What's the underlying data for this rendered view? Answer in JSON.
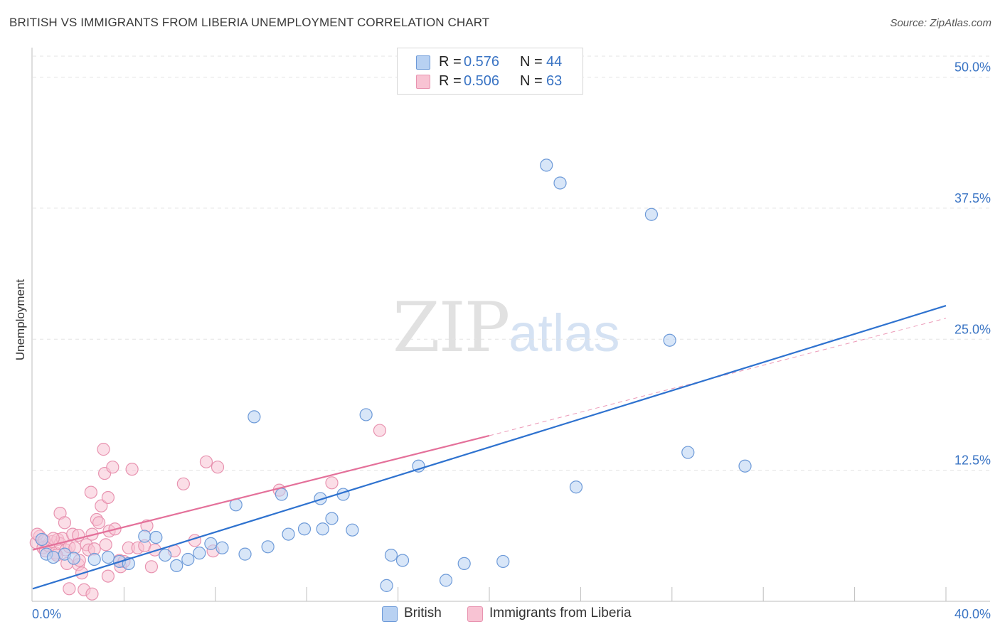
{
  "title": "BRITISH VS IMMIGRANTS FROM LIBERIA UNEMPLOYMENT CORRELATION CHART",
  "source": "Source: ZipAtlas.com",
  "watermark": {
    "zip": "ZIP",
    "atlas": "atlas"
  },
  "legend": {
    "r_label": "R =",
    "n_label": "N =",
    "rows": [
      {
        "name": "British",
        "r": "0.576",
        "n": "44"
      },
      {
        "name": "Immigrants from Liberia",
        "r": "0.506",
        "n": "63"
      }
    ]
  },
  "bottom_legend": {
    "british": "British",
    "liberia": "Immigrants from Liberia"
  },
  "colors": {
    "british_fill": "#b8d1f2",
    "british_stroke": "#6d9ad8",
    "british_line": "#2e72cf",
    "liberia_fill": "#f8c3d3",
    "liberia_stroke": "#e893b0",
    "liberia_line": "#e4709a",
    "value_text": "#3a74c4",
    "grid": "#e3e3e3"
  },
  "chart_data": {
    "type": "scatter",
    "title": "BRITISH VS IMMIGRANTS FROM LIBERIA UNEMPLOYMENT CORRELATION CHART",
    "xlabel": "",
    "ylabel": "Unemployment",
    "xlim": [
      0,
      40
    ],
    "ylim": [
      0,
      52
    ],
    "x_tick_labels": [
      {
        "value": 0,
        "label": "0.0%"
      },
      {
        "value": 40,
        "label": "40.0%"
      }
    ],
    "y_ticks": [
      {
        "value": 12.5,
        "label": "12.5%"
      },
      {
        "value": 25.0,
        "label": "25.0%"
      },
      {
        "value": 37.5,
        "label": "37.5%"
      },
      {
        "value": 50.0,
        "label": "50.0%"
      }
    ],
    "x_minor_ticks": [
      4,
      8,
      12,
      16,
      20,
      24,
      28,
      32,
      36,
      40
    ],
    "series": [
      {
        "name": "British",
        "r": 0.576,
        "n": 44,
        "trend": {
          "x": [
            0,
            40
          ],
          "y": [
            1.2,
            28.2
          ],
          "extends_dashed": false
        },
        "points": [
          [
            0.4,
            5.9
          ],
          [
            0.6,
            4.5
          ],
          [
            0.9,
            4.2
          ],
          [
            1.4,
            4.5
          ],
          [
            1.8,
            4.1
          ],
          [
            2.7,
            4.0
          ],
          [
            3.3,
            4.2
          ],
          [
            3.8,
            3.8
          ],
          [
            4.2,
            3.6
          ],
          [
            4.9,
            6.2
          ],
          [
            5.4,
            6.1
          ],
          [
            5.8,
            4.4
          ],
          [
            6.3,
            3.4
          ],
          [
            6.8,
            4.0
          ],
          [
            7.3,
            4.6
          ],
          [
            7.8,
            5.5
          ],
          [
            8.3,
            5.1
          ],
          [
            8.9,
            9.2
          ],
          [
            9.3,
            4.5
          ],
          [
            9.7,
            17.6
          ],
          [
            10.3,
            5.2
          ],
          [
            10.9,
            10.2
          ],
          [
            11.2,
            6.4
          ],
          [
            11.9,
            6.9
          ],
          [
            12.6,
            9.8
          ],
          [
            12.7,
            6.9
          ],
          [
            13.1,
            7.9
          ],
          [
            13.6,
            10.2
          ],
          [
            14.0,
            6.8
          ],
          [
            14.6,
            17.8
          ],
          [
            15.5,
            1.5
          ],
          [
            15.7,
            4.4
          ],
          [
            16.2,
            3.9
          ],
          [
            16.9,
            12.9
          ],
          [
            18.1,
            2.0
          ],
          [
            18.9,
            3.6
          ],
          [
            20.6,
            3.8
          ],
          [
            22.5,
            41.6
          ],
          [
            23.1,
            39.9
          ],
          [
            23.8,
            10.9
          ],
          [
            27.1,
            36.9
          ],
          [
            27.9,
            24.9
          ],
          [
            28.7,
            14.2
          ],
          [
            31.2,
            12.9
          ]
        ]
      },
      {
        "name": "Immigrants from Liberia",
        "r": 0.506,
        "n": 63,
        "trend": {
          "x": [
            0,
            20
          ],
          "y": [
            4.9,
            15.8
          ],
          "dashed_to": [
            40,
            27.0
          ]
        },
        "points": [
          [
            0.15,
            5.6
          ],
          [
            0.3,
            6.2
          ],
          [
            0.45,
            5.1
          ],
          [
            0.55,
            4.8
          ],
          [
            0.7,
            5.3
          ],
          [
            0.85,
            5.7
          ],
          [
            1.0,
            4.6
          ],
          [
            1.1,
            5.9
          ],
          [
            1.2,
            5.5
          ],
          [
            1.3,
            6.0
          ],
          [
            1.45,
            4.9
          ],
          [
            1.6,
            5.2
          ],
          [
            1.2,
            8.4
          ],
          [
            1.4,
            7.5
          ],
          [
            1.5,
            3.6
          ],
          [
            1.6,
            1.2
          ],
          [
            1.75,
            6.4
          ],
          [
            1.85,
            5.1
          ],
          [
            2.0,
            3.5
          ],
          [
            2.05,
            3.9
          ],
          [
            2.15,
            2.7
          ],
          [
            2.25,
            1.1
          ],
          [
            2.35,
            5.4
          ],
          [
            2.45,
            4.9
          ],
          [
            2.6,
            0.7
          ],
          [
            2.55,
            10.4
          ],
          [
            2.6,
            6.4
          ],
          [
            2.8,
            7.8
          ],
          [
            2.9,
            7.5
          ],
          [
            3.0,
            9.1
          ],
          [
            3.1,
            14.5
          ],
          [
            3.15,
            12.2
          ],
          [
            3.2,
            5.4
          ],
          [
            3.3,
            9.9
          ],
          [
            3.3,
            2.4
          ],
          [
            3.35,
            6.7
          ],
          [
            3.5,
            12.8
          ],
          [
            3.6,
            6.9
          ],
          [
            3.8,
            3.9
          ],
          [
            3.85,
            3.3
          ],
          [
            4.0,
            3.8
          ],
          [
            4.2,
            5.1
          ],
          [
            4.35,
            12.6
          ],
          [
            4.6,
            5.1
          ],
          [
            4.9,
            5.3
          ],
          [
            5.0,
            7.2
          ],
          [
            5.2,
            3.3
          ],
          [
            5.35,
            4.9
          ],
          [
            6.2,
            4.8
          ],
          [
            6.6,
            11.2
          ],
          [
            7.1,
            5.8
          ],
          [
            7.6,
            13.3
          ],
          [
            7.9,
            4.8
          ],
          [
            8.1,
            12.8
          ],
          [
            10.8,
            10.6
          ],
          [
            13.1,
            11.3
          ],
          [
            15.2,
            16.3
          ],
          [
            0.2,
            6.4
          ],
          [
            0.5,
            5.8
          ],
          [
            0.9,
            6.0
          ],
          [
            1.05,
            4.4
          ],
          [
            2.0,
            6.3
          ],
          [
            2.7,
            5.0
          ]
        ]
      }
    ]
  }
}
